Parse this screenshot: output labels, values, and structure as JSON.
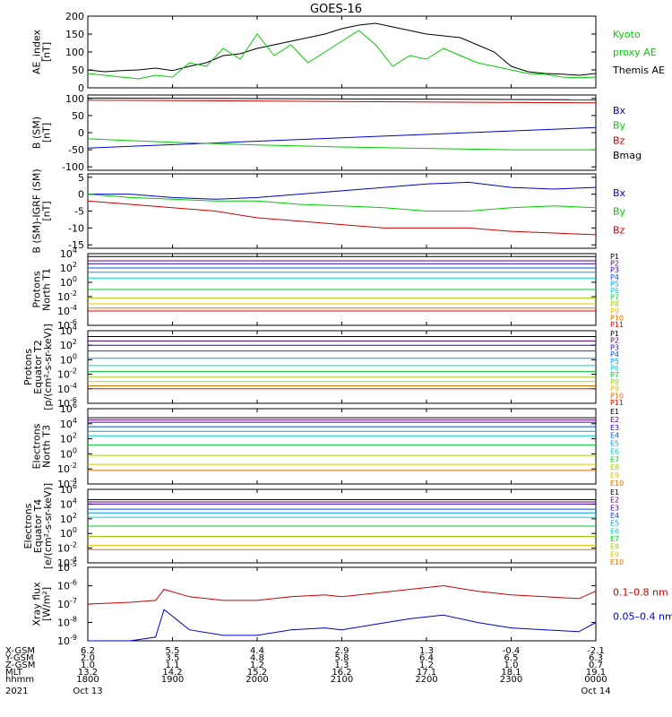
{
  "title": "GOES-16",
  "colors": {
    "black": "#000000",
    "green": "#00cc00",
    "blue": "#0000cc",
    "red": "#cc0000",
    "P": [
      "#000000",
      "#5a007a",
      "#3a00b0",
      "#0050e0",
      "#00a0e0",
      "#00d0d0",
      "#00cc30",
      "#a0d000",
      "#e0c000",
      "#e07000",
      "#e00000"
    ],
    "E": [
      "#000000",
      "#5a007a",
      "#3a00b0",
      "#0050e0",
      "#00a0e0",
      "#00d0d0",
      "#00cc30",
      "#a0d000",
      "#e0c000",
      "#e07000"
    ]
  },
  "orbit": {
    "rows": [
      {
        "label": "X-GSM",
        "values": [
          "6.2",
          "5.5",
          "4.4",
          "2.9",
          "1.3",
          "-0.4",
          "-2.1"
        ]
      },
      {
        "label": "Y-GSM",
        "values": [
          "2.0",
          "3.5",
          "4.8",
          "5.8",
          "6.4",
          "6.5",
          "6.3"
        ]
      },
      {
        "label": "Z-GSM",
        "values": [
          "1.0",
          "1.1",
          "1.2",
          "1.3",
          "1.2",
          "1.0",
          "0.7"
        ]
      },
      {
        "label": "MLT",
        "values": [
          "13.2",
          "14.2",
          "15.2",
          "16.2",
          "17.1",
          "18.1",
          "19.1"
        ]
      },
      {
        "label": "hhmm",
        "values": [
          "1800",
          "1900",
          "2000",
          "2100",
          "2200",
          "2300",
          "0000"
        ]
      }
    ],
    "year": "2021",
    "date_start": "Oct 13",
    "date_end": "Oct 14"
  },
  "chart_data": [
    {
      "id": "ae",
      "type": "line",
      "ylabel": [
        "AE_index",
        "[nT]"
      ],
      "ylim": [
        0,
        200
      ],
      "ticks": [
        {
          "v": 0,
          "t": "0"
        },
        {
          "v": 50,
          "t": "50"
        },
        {
          "v": 100,
          "t": "100"
        },
        {
          "v": 150,
          "t": "150"
        },
        {
          "v": 200,
          "t": "200"
        }
      ],
      "legend": [
        {
          "text": "Kyoto",
          "color": "green"
        },
        {
          "text": "proxy AE",
          "color": "green"
        },
        {
          "text": "Themis AE",
          "color": "black"
        }
      ],
      "series": [
        {
          "name": "Themis AE",
          "color": "black",
          "x": [
            0,
            0.2,
            0.4,
            0.6,
            0.8,
            1.0,
            1.2,
            1.4,
            1.6,
            1.8,
            2.0,
            2.2,
            2.4,
            2.6,
            2.8,
            3.0,
            3.2,
            3.4,
            3.6,
            3.8,
            4.0,
            4.2,
            4.4,
            4.6,
            4.8,
            5.0,
            5.2,
            5.4,
            5.6,
            5.8,
            6.0
          ],
          "y": [
            50,
            45,
            48,
            50,
            55,
            48,
            60,
            70,
            90,
            95,
            110,
            120,
            130,
            140,
            150,
            165,
            175,
            180,
            170,
            160,
            150,
            145,
            140,
            120,
            100,
            60,
            45,
            40,
            38,
            35,
            40
          ]
        },
        {
          "name": "Kyoto proxy AE",
          "color": "green",
          "x": [
            0,
            0.2,
            0.4,
            0.6,
            0.8,
            1.0,
            1.2,
            1.4,
            1.6,
            1.8,
            2.0,
            2.2,
            2.4,
            2.6,
            2.8,
            3.0,
            3.2,
            3.4,
            3.6,
            3.8,
            4.0,
            4.2,
            4.4,
            4.6,
            4.8,
            5.0,
            5.2,
            5.4,
            5.6,
            5.8,
            6.0
          ],
          "y": [
            40,
            35,
            30,
            25,
            35,
            30,
            70,
            60,
            110,
            80,
            150,
            90,
            120,
            70,
            100,
            130,
            160,
            120,
            60,
            90,
            80,
            110,
            90,
            70,
            60,
            50,
            40,
            38,
            30,
            28,
            30
          ]
        }
      ]
    },
    {
      "id": "bsm",
      "type": "line",
      "ylabel": [
        "B (SM)",
        "[nT]"
      ],
      "ylim": [
        -110,
        110
      ],
      "ticks": [
        {
          "v": -100,
          "t": "-100"
        },
        {
          "v": -50,
          "t": "-50"
        },
        {
          "v": 0,
          "t": "0"
        },
        {
          "v": 50,
          "t": "50"
        },
        {
          "v": 100,
          "t": "100"
        }
      ],
      "legend": [
        {
          "text": "Bx",
          "color": "blue"
        },
        {
          "text": "By",
          "color": "green"
        },
        {
          "text": "Bz",
          "color": "red"
        },
        {
          "text": "Bmag",
          "color": "black"
        }
      ],
      "series": [
        {
          "name": "Bmag",
          "color": "black",
          "x": [
            0,
            6
          ],
          "y": [
            101,
            96
          ]
        },
        {
          "name": "Bz",
          "color": "red",
          "x": [
            0,
            6
          ],
          "y": [
            95,
            87
          ]
        },
        {
          "name": "Bx",
          "color": "blue",
          "x": [
            0,
            6
          ],
          "y": [
            -45,
            15
          ]
        },
        {
          "name": "By",
          "color": "green",
          "x": [
            0,
            1,
            2,
            3,
            4,
            5,
            6
          ],
          "y": [
            -18,
            -28,
            -36,
            -42,
            -46,
            -50,
            -50
          ]
        }
      ]
    },
    {
      "id": "bigrf",
      "type": "line",
      "ylabel": [
        "B (SM)-IGRF (SM)",
        "[nT]"
      ],
      "ylim": [
        -16,
        6
      ],
      "ticks": [
        {
          "v": -15,
          "t": "-15"
        },
        {
          "v": -10,
          "t": "-10"
        },
        {
          "v": -5,
          "t": "-5"
        },
        {
          "v": 0,
          "t": "0"
        },
        {
          "v": 5,
          "t": "5"
        }
      ],
      "legend": [
        {
          "text": "Bx",
          "color": "blue"
        },
        {
          "text": "By",
          "color": "green"
        },
        {
          "text": "Bz",
          "color": "red"
        }
      ],
      "series": [
        {
          "name": "Bx",
          "color": "blue",
          "x": [
            0,
            0.5,
            1.0,
            1.5,
            2.0,
            2.5,
            3.0,
            3.5,
            4.0,
            4.5,
            5.0,
            5.5,
            6.0
          ],
          "y": [
            0,
            0,
            -1,
            -1.5,
            -1,
            0,
            1,
            2,
            3,
            3.5,
            2,
            1.5,
            2
          ]
        },
        {
          "name": "By",
          "color": "green",
          "x": [
            0,
            0.5,
            1.0,
            1.5,
            2.0,
            2.5,
            3.0,
            3.5,
            4.0,
            4.5,
            5.0,
            5.5,
            6.0
          ],
          "y": [
            0,
            -1,
            -1.5,
            -2,
            -2,
            -3,
            -3.5,
            -4,
            -5,
            -5,
            -4,
            -3.5,
            -4
          ]
        },
        {
          "name": "Bz",
          "color": "red",
          "x": [
            0,
            0.5,
            1.0,
            1.5,
            2.0,
            2.5,
            3.0,
            3.5,
            4.0,
            4.5,
            5.0,
            5.5,
            6.0
          ],
          "y": [
            -2,
            -3,
            -4,
            -5,
            -7,
            -8,
            -9,
            -10,
            -10,
            -10,
            -11,
            -11.5,
            -12
          ]
        }
      ]
    },
    {
      "id": "protons1",
      "type": "line",
      "log": true,
      "ylabel": [
        "Protons",
        "North T1"
      ],
      "ylim": [
        -6,
        4
      ],
      "ticks": [
        {
          "v": 4,
          "t": "10",
          "e": "4"
        },
        {
          "v": 2,
          "t": "10",
          "e": "2"
        },
        {
          "v": 0,
          "t": "10",
          "e": "0"
        },
        {
          "v": -2,
          "t": "10",
          "e": "-2"
        },
        {
          "v": -4,
          "t": "10",
          "e": "-4"
        },
        {
          "v": -6,
          "t": "10",
          "e": "-6"
        }
      ],
      "legend_key": "P",
      "legend_labels": [
        "P1",
        "P2",
        "P3",
        "P4",
        "P5",
        "P6",
        "P7",
        "P8",
        "P9",
        "P10",
        "P11"
      ],
      "levels": [
        3.6,
        3.0,
        2.6,
        2.0,
        1.4,
        0.6,
        -1.0,
        -2.2,
        -3.0,
        -3.6,
        -4.0
      ]
    },
    {
      "id": "protons2",
      "type": "line",
      "log": true,
      "ylabel": [
        "Protons",
        "Equator T2",
        "[p/(cm²-s-sr-keV)]"
      ],
      "ylim": [
        -6,
        4
      ],
      "ticks": [
        {
          "v": 4,
          "t": "10",
          "e": "4"
        },
        {
          "v": 2,
          "t": "10",
          "e": "2"
        },
        {
          "v": 0,
          "t": "10",
          "e": "0"
        },
        {
          "v": -2,
          "t": "10",
          "e": "-2"
        },
        {
          "v": -4,
          "t": "10",
          "e": "-4"
        },
        {
          "v": -6,
          "t": "10",
          "e": "-6"
        }
      ],
      "legend_key": "P",
      "legend_labels": [
        "P1",
        "P2",
        "P3",
        "P4",
        "P5",
        "P6",
        "P7",
        "P8",
        "P9",
        "P10",
        "P11"
      ],
      "levels": [
        3.2,
        2.6,
        2.0,
        1.2,
        0.2,
        -0.8,
        -1.6,
        -2.4,
        -3.0,
        -3.6,
        -4.0
      ]
    },
    {
      "id": "electrons3",
      "type": "line",
      "log": true,
      "ylabel": [
        "Electrons",
        "North T3"
      ],
      "ylim": [
        -4,
        6
      ],
      "ticks": [
        {
          "v": 6,
          "t": "10",
          "e": "6"
        },
        {
          "v": 4,
          "t": "10",
          "e": "4"
        },
        {
          "v": 2,
          "t": "10",
          "e": "2"
        },
        {
          "v": 0,
          "t": "10",
          "e": "0"
        },
        {
          "v": -2,
          "t": "10",
          "e": "-2"
        },
        {
          "v": -4,
          "t": "10",
          "e": "-4"
        }
      ],
      "legend_key": "E",
      "legend_labels": [
        "E1",
        "E2",
        "E3",
        "E4",
        "E5",
        "E6",
        "E7",
        "E8",
        "E9",
        "E10"
      ],
      "levels": [
        4.8,
        4.5,
        4.2,
        3.6,
        3.0,
        2.4,
        1.2,
        -0.2,
        -1.4,
        -2.2
      ]
    },
    {
      "id": "electrons4",
      "type": "line",
      "log": true,
      "ylabel": [
        "Electrons",
        "Equator T4",
        "[e/(cm²-s-sr-keV)]"
      ],
      "ylim": [
        -4,
        6
      ],
      "ticks": [
        {
          "v": 6,
          "t": "10",
          "e": "6"
        },
        {
          "v": 4,
          "t": "10",
          "e": "4"
        },
        {
          "v": 2,
          "t": "10",
          "e": "2"
        },
        {
          "v": 0,
          "t": "10",
          "e": "0"
        },
        {
          "v": -2,
          "t": "10",
          "e": "-2"
        },
        {
          "v": -4,
          "t": "10",
          "e": "-4"
        }
      ],
      "legend_key": "E",
      "legend_labels": [
        "E1",
        "E2",
        "E3",
        "E4",
        "E5",
        "E6",
        "E7",
        "E8",
        "E9",
        "E10"
      ],
      "levels": [
        4.6,
        4.3,
        4.0,
        3.3,
        2.8,
        2.2,
        1.0,
        -0.4,
        -1.6,
        -2.2
      ]
    },
    {
      "id": "xray",
      "type": "line",
      "log": true,
      "ylabel": [
        "Xray flux",
        "[W/m²]"
      ],
      "ylim": [
        -9,
        -5
      ],
      "ticks": [
        {
          "v": -5,
          "t": "10",
          "e": "-5"
        },
        {
          "v": -6,
          "t": "10",
          "e": "-6"
        },
        {
          "v": -7,
          "t": "10",
          "e": "-7"
        },
        {
          "v": -8,
          "t": "10",
          "e": "-8"
        },
        {
          "v": -9,
          "t": "10",
          "e": "-9"
        }
      ],
      "legend": [
        {
          "text": "0.1–0.8 nm",
          "color": "red"
        },
        {
          "text": "0.05–0.4 nm",
          "color": "blue"
        }
      ],
      "series": [
        {
          "name": "0.1-0.8 nm",
          "color": "red",
          "x": [
            0,
            0.5,
            0.8,
            0.9,
            1.2,
            1.6,
            2.0,
            2.4,
            2.8,
            3.0,
            3.4,
            3.8,
            4.2,
            4.6,
            5.0,
            5.4,
            5.8,
            6.0
          ],
          "y": [
            -7.0,
            -6.9,
            -6.8,
            -6.2,
            -6.6,
            -6.8,
            -6.8,
            -6.6,
            -6.5,
            -6.6,
            -6.4,
            -6.2,
            -6.0,
            -6.3,
            -6.5,
            -6.6,
            -6.7,
            -6.3
          ]
        },
        {
          "name": "0.05-0.4 nm",
          "color": "blue",
          "x": [
            0,
            0.5,
            0.8,
            0.9,
            1.2,
            1.6,
            2.0,
            2.4,
            2.8,
            3.0,
            3.4,
            3.8,
            4.2,
            4.6,
            5.0,
            5.4,
            5.8,
            6.0
          ],
          "y": [
            -9.0,
            -9.0,
            -8.8,
            -7.3,
            -8.4,
            -8.7,
            -8.7,
            -8.4,
            -8.3,
            -8.4,
            -8.1,
            -7.8,
            -7.6,
            -8.0,
            -8.3,
            -8.4,
            -8.5,
            -8.0
          ]
        }
      ]
    }
  ]
}
